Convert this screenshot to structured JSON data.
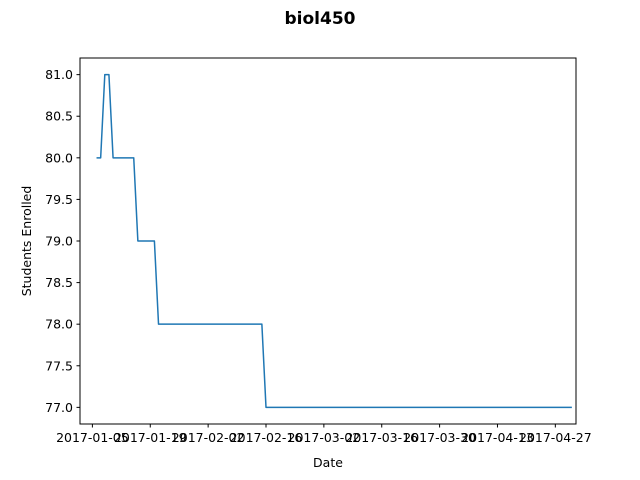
{
  "chart_data": {
    "type": "line",
    "title": "biol450",
    "xlabel": "Date",
    "ylabel": "Students Enrolled",
    "x_axis_type": "date",
    "xlim": [
      "2017-01-02",
      "2017-05-02"
    ],
    "ylim": [
      76.8,
      81.2
    ],
    "x_ticks": [
      "2017-01-05",
      "2017-01-19",
      "2017-02-02",
      "2017-02-16",
      "2017-03-02",
      "2017-03-16",
      "2017-03-30",
      "2017-04-13",
      "2017-04-27"
    ],
    "y_ticks": [
      "77.0",
      "77.5",
      "78.0",
      "78.5",
      "79.0",
      "79.5",
      "80.0",
      "80.5",
      "81.0"
    ],
    "grid": false,
    "legend": "none",
    "series": [
      {
        "color": "#1f77b4",
        "points": [
          [
            "2017-01-06",
            80
          ],
          [
            "2017-01-07",
            80
          ],
          [
            "2017-01-08",
            81
          ],
          [
            "2017-01-09",
            81
          ],
          [
            "2017-01-10",
            80
          ],
          [
            "2017-01-15",
            80
          ],
          [
            "2017-01-16",
            79
          ],
          [
            "2017-01-20",
            79
          ],
          [
            "2017-01-21",
            78
          ],
          [
            "2017-02-15",
            78
          ],
          [
            "2017-02-16",
            77
          ],
          [
            "2017-05-01",
            77
          ]
        ]
      }
    ]
  }
}
